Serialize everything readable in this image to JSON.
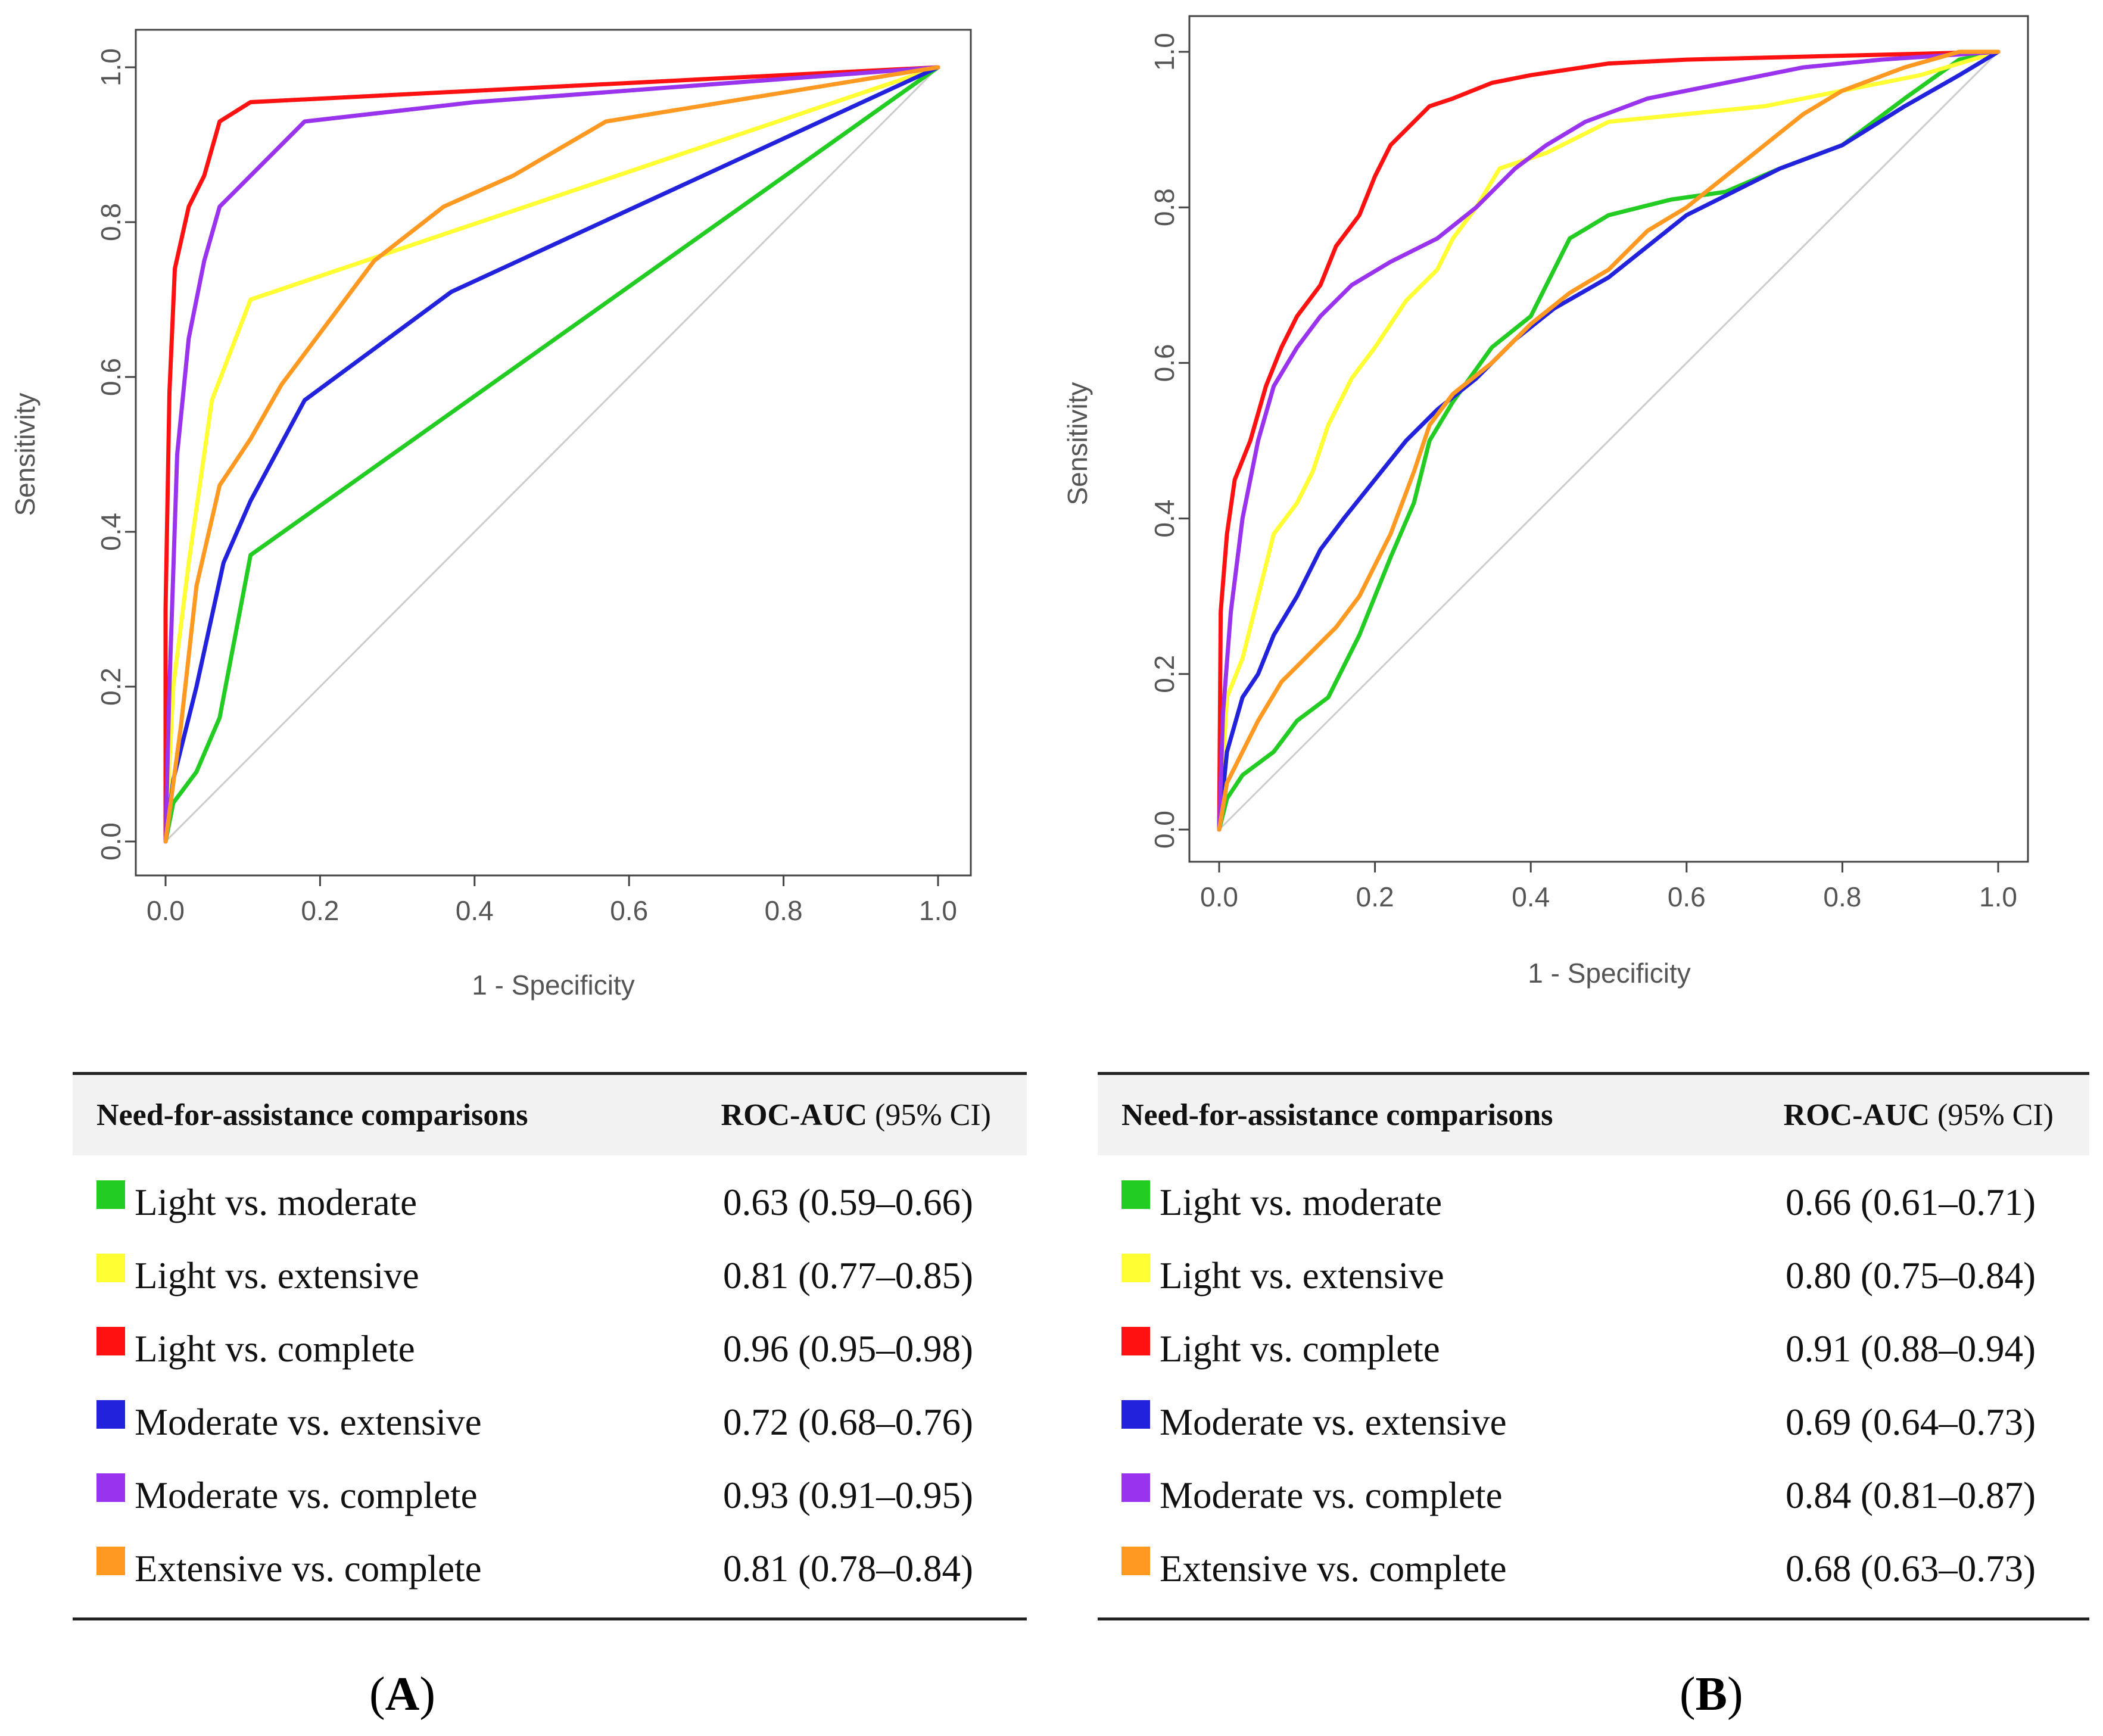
{
  "chart_data": [
    {
      "type": "line",
      "panel": "A",
      "xlabel": "1 - Specificity",
      "ylabel": "Sensitivity",
      "xlim": [
        0,
        1
      ],
      "ylim": [
        0,
        1
      ],
      "x_ticks": [
        "0.0",
        "0.2",
        "0.4",
        "0.6",
        "0.8",
        "1.0"
      ],
      "y_ticks": [
        "0.0",
        "0.2",
        "0.4",
        "0.6",
        "0.8",
        "1.0"
      ],
      "diagonal_reference": true,
      "series": [
        {
          "name": "Light vs. moderate",
          "color": "#22cc22",
          "points": [
            [
              0,
              0
            ],
            [
              0.01,
              0.05
            ],
            [
              0.04,
              0.09
            ],
            [
              0.07,
              0.16
            ],
            [
              0.11,
              0.37
            ],
            [
              1,
              1
            ]
          ]
        },
        {
          "name": "Light vs. extensive",
          "color": "#ffff33",
          "points": [
            [
              0,
              0
            ],
            [
              0.01,
              0.2
            ],
            [
              0.03,
              0.36
            ],
            [
              0.06,
              0.57
            ],
            [
              0.11,
              0.7
            ],
            [
              1,
              1
            ]
          ]
        },
        {
          "name": "Light vs. complete",
          "color": "#ff1111",
          "points": [
            [
              0,
              0
            ],
            [
              0,
              0.3
            ],
            [
              0.005,
              0.58
            ],
            [
              0.012,
              0.74
            ],
            [
              0.03,
              0.82
            ],
            [
              0.05,
              0.86
            ],
            [
              0.07,
              0.93
            ],
            [
              0.11,
              0.955
            ],
            [
              1,
              1
            ]
          ]
        },
        {
          "name": "Moderate vs. extensive",
          "color": "#2222dd",
          "points": [
            [
              0,
              0
            ],
            [
              0.01,
              0.08
            ],
            [
              0.04,
              0.2
            ],
            [
              0.075,
              0.36
            ],
            [
              0.11,
              0.44
            ],
            [
              0.18,
              0.57
            ],
            [
              0.37,
              0.71
            ],
            [
              1,
              1
            ]
          ]
        },
        {
          "name": "Moderate vs. complete",
          "color": "#9933ee",
          "points": [
            [
              0,
              0
            ],
            [
              0.005,
              0.2
            ],
            [
              0.015,
              0.5
            ],
            [
              0.03,
              0.65
            ],
            [
              0.05,
              0.75
            ],
            [
              0.07,
              0.82
            ],
            [
              0.11,
              0.86
            ],
            [
              0.18,
              0.93
            ],
            [
              0.4,
              0.955
            ],
            [
              1,
              1
            ]
          ]
        },
        {
          "name": "Extensive vs. complete",
          "color": "#ff9922",
          "points": [
            [
              0,
              0
            ],
            [
              0.02,
              0.15
            ],
            [
              0.04,
              0.33
            ],
            [
              0.07,
              0.46
            ],
            [
              0.11,
              0.52
            ],
            [
              0.15,
              0.59
            ],
            [
              0.27,
              0.75
            ],
            [
              0.36,
              0.82
            ],
            [
              0.45,
              0.86
            ],
            [
              0.57,
              0.93
            ],
            [
              1,
              1
            ]
          ]
        }
      ]
    },
    {
      "type": "line",
      "panel": "B",
      "xlabel": "1 - Specificity",
      "ylabel": "Sensitivity",
      "xlim": [
        0,
        1
      ],
      "ylim": [
        0,
        1
      ],
      "x_ticks": [
        "0.0",
        "0.2",
        "0.4",
        "0.6",
        "0.8",
        "1.0"
      ],
      "y_ticks": [
        "0.0",
        "0.2",
        "0.4",
        "0.6",
        "0.8",
        "1.0"
      ],
      "diagonal_reference": true,
      "series": [
        {
          "name": "Light vs. moderate",
          "color": "#22cc22",
          "points": [
            [
              0,
              0
            ],
            [
              0.01,
              0.04
            ],
            [
              0.03,
              0.07
            ],
            [
              0.07,
              0.1
            ],
            [
              0.1,
              0.14
            ],
            [
              0.14,
              0.17
            ],
            [
              0.18,
              0.25
            ],
            [
              0.22,
              0.35
            ],
            [
              0.25,
              0.42
            ],
            [
              0.27,
              0.5
            ],
            [
              0.3,
              0.55
            ],
            [
              0.35,
              0.62
            ],
            [
              0.4,
              0.66
            ],
            [
              0.45,
              0.76
            ],
            [
              0.5,
              0.79
            ],
            [
              0.58,
              0.81
            ],
            [
              0.65,
              0.82
            ],
            [
              0.72,
              0.85
            ],
            [
              0.8,
              0.88
            ],
            [
              0.88,
              0.94
            ],
            [
              0.95,
              0.99
            ],
            [
              1,
              1
            ]
          ]
        },
        {
          "name": "Light vs. extensive",
          "color": "#ffff33",
          "points": [
            [
              0,
              0
            ],
            [
              0.01,
              0.17
            ],
            [
              0.03,
              0.22
            ],
            [
              0.05,
              0.3
            ],
            [
              0.07,
              0.38
            ],
            [
              0.1,
              0.42
            ],
            [
              0.12,
              0.46
            ],
            [
              0.14,
              0.52
            ],
            [
              0.17,
              0.58
            ],
            [
              0.2,
              0.62
            ],
            [
              0.24,
              0.68
            ],
            [
              0.28,
              0.72
            ],
            [
              0.3,
              0.76
            ],
            [
              0.33,
              0.8
            ],
            [
              0.36,
              0.85
            ],
            [
              0.42,
              0.87
            ],
            [
              0.5,
              0.91
            ],
            [
              0.6,
              0.92
            ],
            [
              0.7,
              0.93
            ],
            [
              0.8,
              0.95
            ],
            [
              0.9,
              0.97
            ],
            [
              1,
              1
            ]
          ]
        },
        {
          "name": "Light vs. complete",
          "color": "#ff1111",
          "points": [
            [
              0,
              0
            ],
            [
              0.002,
              0.28
            ],
            [
              0.01,
              0.38
            ],
            [
              0.02,
              0.45
            ],
            [
              0.04,
              0.5
            ],
            [
              0.06,
              0.57
            ],
            [
              0.08,
              0.62
            ],
            [
              0.1,
              0.66
            ],
            [
              0.13,
              0.7
            ],
            [
              0.15,
              0.75
            ],
            [
              0.18,
              0.79
            ],
            [
              0.2,
              0.84
            ],
            [
              0.22,
              0.88
            ],
            [
              0.24,
              0.9
            ],
            [
              0.27,
              0.93
            ],
            [
              0.3,
              0.94
            ],
            [
              0.35,
              0.96
            ],
            [
              0.4,
              0.97
            ],
            [
              0.5,
              0.985
            ],
            [
              0.6,
              0.99
            ],
            [
              0.8,
              0.995
            ],
            [
              1,
              1
            ]
          ]
        },
        {
          "name": "Moderate vs. extensive",
          "color": "#2222dd",
          "points": [
            [
              0,
              0
            ],
            [
              0.01,
              0.1
            ],
            [
              0.03,
              0.17
            ],
            [
              0.05,
              0.2
            ],
            [
              0.07,
              0.25
            ],
            [
              0.1,
              0.3
            ],
            [
              0.13,
              0.36
            ],
            [
              0.16,
              0.4
            ],
            [
              0.2,
              0.45
            ],
            [
              0.24,
              0.5
            ],
            [
              0.28,
              0.54
            ],
            [
              0.33,
              0.58
            ],
            [
              0.38,
              0.63
            ],
            [
              0.43,
              0.67
            ],
            [
              0.5,
              0.71
            ],
            [
              0.55,
              0.75
            ],
            [
              0.6,
              0.79
            ],
            [
              0.66,
              0.82
            ],
            [
              0.72,
              0.85
            ],
            [
              0.8,
              0.88
            ],
            [
              0.88,
              0.93
            ],
            [
              0.95,
              0.97
            ],
            [
              1,
              1
            ]
          ]
        },
        {
          "name": "Moderate vs. complete",
          "color": "#9933ee",
          "points": [
            [
              0,
              0
            ],
            [
              0.005,
              0.15
            ],
            [
              0.015,
              0.28
            ],
            [
              0.03,
              0.4
            ],
            [
              0.05,
              0.5
            ],
            [
              0.07,
              0.57
            ],
            [
              0.1,
              0.62
            ],
            [
              0.13,
              0.66
            ],
            [
              0.17,
              0.7
            ],
            [
              0.22,
              0.73
            ],
            [
              0.28,
              0.76
            ],
            [
              0.33,
              0.8
            ],
            [
              0.38,
              0.85
            ],
            [
              0.42,
              0.88
            ],
            [
              0.47,
              0.91
            ],
            [
              0.55,
              0.94
            ],
            [
              0.65,
              0.96
            ],
            [
              0.75,
              0.98
            ],
            [
              0.85,
              0.99
            ],
            [
              1,
              1
            ]
          ]
        },
        {
          "name": "Extensive vs. complete",
          "color": "#ff9922",
          "points": [
            [
              0,
              0
            ],
            [
              0.01,
              0.06
            ],
            [
              0.03,
              0.1
            ],
            [
              0.05,
              0.14
            ],
            [
              0.08,
              0.19
            ],
            [
              0.12,
              0.23
            ],
            [
              0.15,
              0.26
            ],
            [
              0.18,
              0.3
            ],
            [
              0.22,
              0.38
            ],
            [
              0.25,
              0.46
            ],
            [
              0.27,
              0.52
            ],
            [
              0.3,
              0.56
            ],
            [
              0.35,
              0.6
            ],
            [
              0.4,
              0.65
            ],
            [
              0.45,
              0.69
            ],
            [
              0.5,
              0.72
            ],
            [
              0.55,
              0.77
            ],
            [
              0.6,
              0.8
            ],
            [
              0.65,
              0.84
            ],
            [
              0.7,
              0.88
            ],
            [
              0.75,
              0.92
            ],
            [
              0.8,
              0.95
            ],
            [
              0.88,
              0.98
            ],
            [
              0.95,
              1.0
            ],
            [
              1,
              1
            ]
          ]
        }
      ]
    }
  ],
  "tables": [
    {
      "header_comparisons": "Need-for-assistance comparisons",
      "header_auc": "ROC-AUC",
      "header_ci": "(95% CI)",
      "rows": [
        {
          "label": "Light vs. moderate",
          "value": "0.63 (0.59–0.66)",
          "color": "#22cc22"
        },
        {
          "label": "Light vs. extensive",
          "value": "0.81 (0.77–0.85)",
          "color": "#ffff33"
        },
        {
          "label": "Light vs. complete",
          "value": "0.96 (0.95–0.98)",
          "color": "#ff1111"
        },
        {
          "label": "Moderate vs. extensive",
          "value": "0.72 (0.68–0.76)",
          "color": "#2222dd"
        },
        {
          "label": "Moderate vs. complete",
          "value": "0.93 (0.91–0.95)",
          "color": "#9933ee"
        },
        {
          "label": "Extensive vs. complete",
          "value": "0.81 (0.78–0.84)",
          "color": "#ff9922"
        }
      ]
    },
    {
      "header_comparisons": "Need-for-assistance comparisons",
      "header_auc": "ROC-AUC",
      "header_ci": "(95% CI)",
      "rows": [
        {
          "label": "Light vs. moderate",
          "value": "0.66 (0.61–0.71)",
          "color": "#22cc22"
        },
        {
          "label": "Light vs. extensive",
          "value": "0.80 (0.75–0.84)",
          "color": "#ffff33"
        },
        {
          "label": "Light vs. complete",
          "value": "0.91 (0.88–0.94)",
          "color": "#ff1111"
        },
        {
          "label": "Moderate vs. extensive",
          "value": "0.69 (0.64–0.73)",
          "color": "#2222dd"
        },
        {
          "label": "Moderate vs. complete",
          "value": "0.84 (0.81–0.87)",
          "color": "#9933ee"
        },
        {
          "label": "Extensive vs. complete",
          "value": "0.68 (0.63–0.73)",
          "color": "#ff9922"
        }
      ]
    }
  ],
  "panel_labels": {
    "a_open": "(",
    "a_letter": "A",
    "a_close": ")",
    "b_open": "(",
    "b_letter": "B",
    "b_close": ")"
  }
}
